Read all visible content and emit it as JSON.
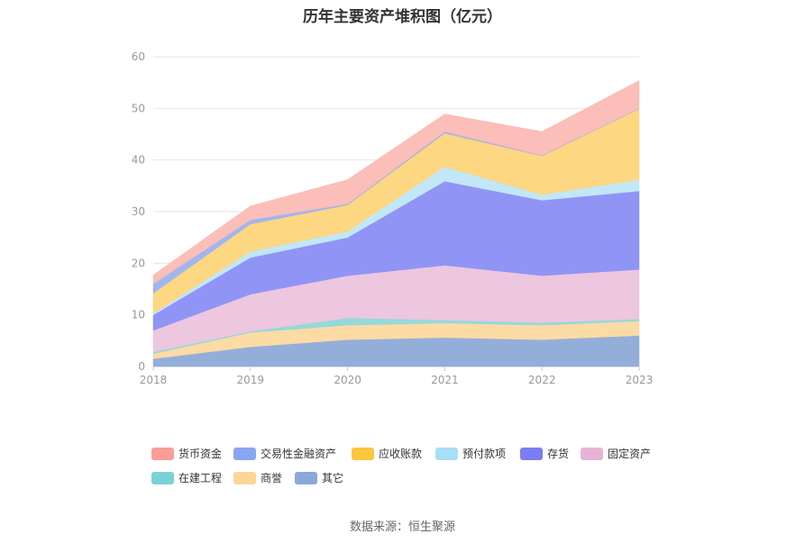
{
  "chart_data": {
    "type": "area",
    "stacked": true,
    "title": "历年主要资产堆积图（亿元）",
    "xlabel": "",
    "ylabel": "",
    "categories": [
      "2018",
      "2019",
      "2020",
      "2021",
      "2022",
      "2023"
    ],
    "ylim": [
      0,
      60
    ],
    "yticks": [
      0,
      10,
      20,
      30,
      40,
      50,
      60
    ],
    "grid": true,
    "legend_position": "bottom",
    "series": [
      {
        "name": "其它",
        "color": "#8eaad8",
        "values": [
          1.5,
          3.8,
          5.2,
          5.6,
          5.2,
          6.0
        ]
      },
      {
        "name": "商誉",
        "color": "#fcd9a0",
        "values": [
          1.0,
          2.8,
          2.8,
          2.8,
          2.8,
          2.8
        ]
      },
      {
        "name": "在建工程",
        "color": "#8ed8d8",
        "values": [
          0.3,
          0.2,
          1.4,
          0.6,
          0.5,
          0.4
        ]
      },
      {
        "name": "固定资产",
        "color": "#ecc3dd",
        "values": [
          4.2,
          7.2,
          8.2,
          10.6,
          9.1,
          9.6
        ]
      },
      {
        "name": "存货",
        "color": "#8a8ff4",
        "values": [
          3.0,
          7.1,
          7.4,
          16.3,
          14.6,
          15.2
        ]
      },
      {
        "name": "预付款项",
        "color": "#bfe6f7",
        "values": [
          0.3,
          1.2,
          1.2,
          2.8,
          1.1,
          2.2
        ]
      },
      {
        "name": "应收账款",
        "color": "#fdd57a",
        "values": [
          3.9,
          5.3,
          5.1,
          6.5,
          7.5,
          13.7
        ]
      },
      {
        "name": "交易性金融资产",
        "color": "#9bb2f0",
        "values": [
          1.8,
          0.8,
          0.2,
          0.3,
          0.1,
          0.1
        ]
      },
      {
        "name": "货币资金",
        "color": "#fbbab4",
        "values": [
          1.7,
          2.7,
          4.7,
          3.4,
          4.6,
          5.4
        ]
      }
    ]
  },
  "legend": [
    {
      "label": "货币资金",
      "color": "#fa9d96"
    },
    {
      "label": "交易性金融资产",
      "color": "#8aa6f3"
    },
    {
      "label": "应收账款",
      "color": "#fcc63e"
    },
    {
      "label": "预付款项",
      "color": "#a9def7"
    },
    {
      "label": "存货",
      "color": "#7b7ef1"
    },
    {
      "label": "固定资产",
      "color": "#e8b4d6"
    },
    {
      "label": "在建工程",
      "color": "#79d3d6"
    },
    {
      "label": "商誉",
      "color": "#fbd696"
    },
    {
      "label": "其它",
      "color": "#8ba8d8"
    }
  ],
  "source": "数据来源：恒生聚源"
}
